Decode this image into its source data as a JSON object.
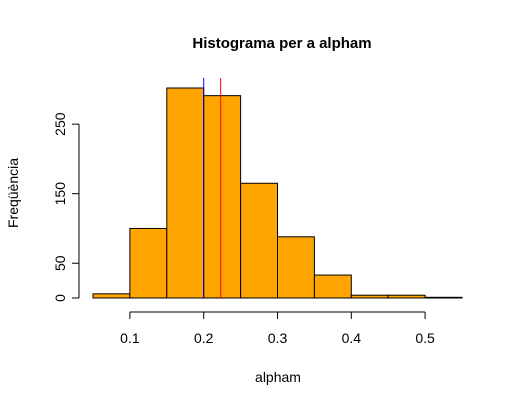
{
  "chart_data": {
    "type": "bar",
    "title": "Histograma per a alpham",
    "xlabel": "alpham",
    "ylabel": "Freqüència",
    "bin_edges": [
      0.05,
      0.1,
      0.15,
      0.2,
      0.25,
      0.3,
      0.35,
      0.4,
      0.45,
      0.5,
      0.55
    ],
    "values": [
      6,
      100,
      302,
      291,
      165,
      88,
      33,
      4,
      4,
      1
    ],
    "xlim": [
      0.05,
      0.55
    ],
    "ylim": [
      0,
      302
    ],
    "x_ticks": [
      0.1,
      0.2,
      0.3,
      0.4,
      0.5
    ],
    "x_tick_labels": [
      "0.1",
      "0.2",
      "0.3",
      "0.4",
      "0.5"
    ],
    "y_ticks": [
      0,
      50,
      150,
      250
    ],
    "y_tick_labels": [
      "0",
      "50",
      "150",
      "250"
    ],
    "bar_color": "#FFA500",
    "bar_edge_color": "#000000",
    "reference_lines": [
      {
        "x": 0.2,
        "color": "#0000FF"
      },
      {
        "x": 0.223,
        "color": "#FF0000"
      }
    ],
    "grid": false,
    "legend": "none"
  }
}
